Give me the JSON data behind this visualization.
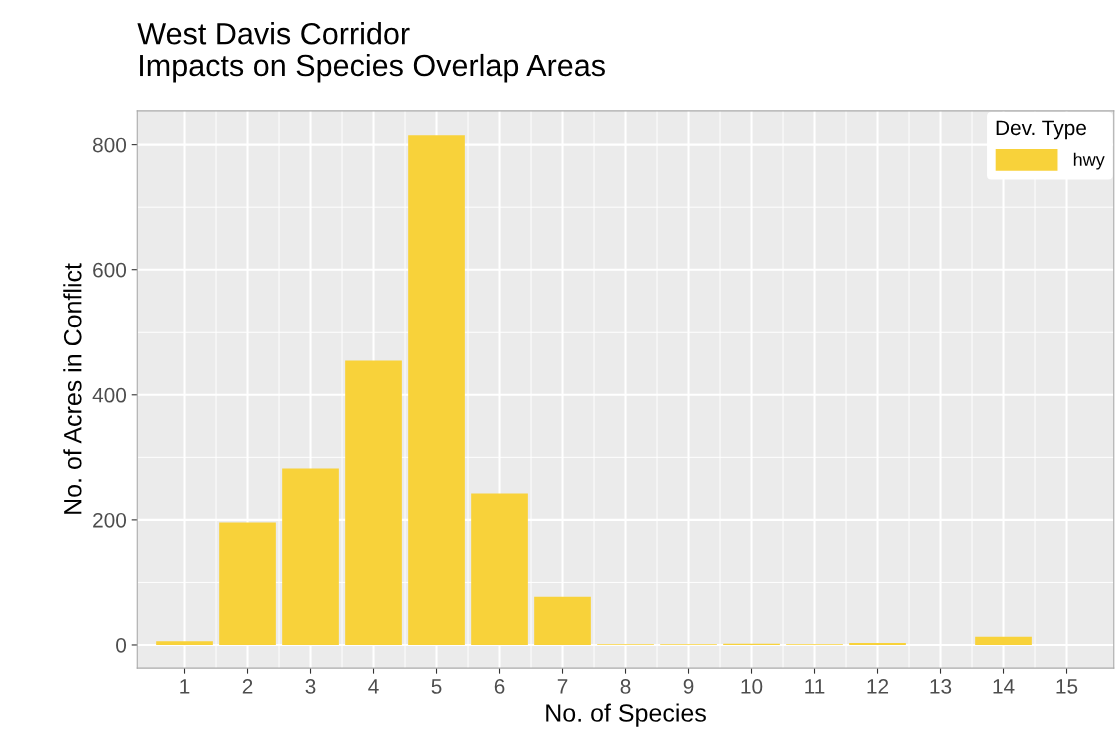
{
  "chart_data": {
    "type": "bar",
    "title": "West Davis Corridor\nImpacts on Species Overlap Areas",
    "xlabel": "No. of Species",
    "ylabel": "No. of Acres in Conflict",
    "legend_title": "Dev. Type",
    "categories": [
      "1",
      "2",
      "3",
      "4",
      "5",
      "6",
      "7",
      "8",
      "9",
      "10",
      "11",
      "12",
      "13",
      "14",
      "15"
    ],
    "series": [
      {
        "name": "hwy",
        "color": "#f8d23a",
        "values": [
          6,
          196,
          282,
          455,
          815,
          242,
          77,
          1,
          1,
          2,
          1,
          3,
          null,
          13,
          null
        ]
      }
    ],
    "ylim": [
      -37,
      854
    ],
    "yticks": [
      0,
      200,
      400,
      600,
      800
    ],
    "grid": true,
    "legend": "top right"
  }
}
